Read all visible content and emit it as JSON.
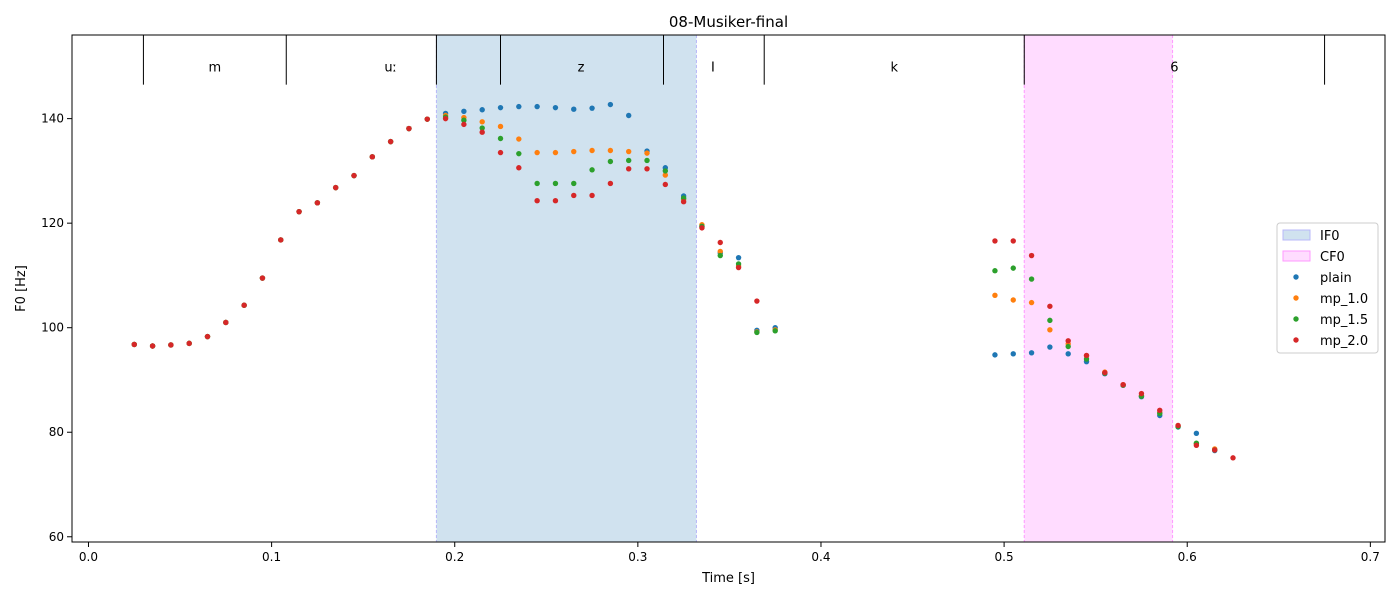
{
  "chart_data": {
    "type": "scatter",
    "title": "08-Musiker-final",
    "xlabel": "Time [s]",
    "ylabel": "F0 [Hz]",
    "xlim": [
      -0.009,
      0.708
    ],
    "ylim": [
      59,
      156
    ],
    "x_ticks": [
      0.0,
      0.1,
      0.2,
      0.3,
      0.4,
      0.5,
      0.6,
      0.7
    ],
    "x_tick_labels": [
      "0.0",
      "0.1",
      "0.2",
      "0.3",
      "0.4",
      "0.5",
      "0.6",
      "0.7"
    ],
    "y_ticks": [
      60,
      80,
      100,
      120,
      140
    ],
    "y_tick_labels": [
      "60",
      "80",
      "100",
      "120",
      "140"
    ],
    "grid": false,
    "legend_placement": "center-right",
    "segments": {
      "boundaries": [
        0.03,
        0.108,
        0.19,
        0.225,
        0.314,
        0.369,
        0.511,
        0.675
      ],
      "labels": [
        {
          "text": "m",
          "x": 0.069
        },
        {
          "text": "uː",
          "x": 0.165
        },
        {
          "text": "z",
          "x": 0.269
        },
        {
          "text": "I",
          "x": 0.341
        },
        {
          "text": "k",
          "x": 0.44
        },
        {
          "text": "6",
          "x": 0.593
        }
      ],
      "label_y": 150,
      "tick_bottom": 146.5
    },
    "spans": [
      {
        "name": "IF0",
        "x0": 0.19,
        "x1": 0.332,
        "color": "#aecde3",
        "edge": "#b8b8f8"
      },
      {
        "name": "CF0",
        "x0": 0.511,
        "x1": 0.592,
        "color": "#ffc2ff",
        "edge": "#ff99ff"
      }
    ],
    "series": [
      {
        "name": "plain",
        "color": "#1f77b4",
        "x": [
          0.025,
          0.035,
          0.045,
          0.055,
          0.065,
          0.075,
          0.085,
          0.095,
          0.105,
          0.115,
          0.125,
          0.135,
          0.145,
          0.155,
          0.165,
          0.175,
          0.185,
          0.195,
          0.205,
          0.215,
          0.225,
          0.235,
          0.245,
          0.255,
          0.265,
          0.275,
          0.285,
          0.295,
          0.305,
          0.315,
          0.325,
          0.335,
          0.345,
          0.355,
          0.365,
          0.375,
          0.495,
          0.505,
          0.515,
          0.525,
          0.535,
          0.545,
          0.555,
          0.565,
          0.575,
          0.585,
          0.595,
          0.605,
          0.615
        ],
        "y": [
          96.8,
          96.5,
          96.7,
          97.0,
          98.3,
          101.0,
          104.3,
          109.5,
          116.8,
          122.2,
          123.9,
          126.8,
          129.1,
          132.7,
          135.6,
          138.1,
          139.9,
          141.0,
          141.4,
          141.7,
          142.1,
          142.3,
          142.3,
          142.1,
          141.8,
          142.0,
          142.7,
          140.6,
          133.8,
          130.6,
          125.2,
          119.3,
          114.3,
          113.4,
          99.5,
          100.0,
          94.8,
          95.0,
          95.2,
          96.3,
          95.0,
          93.5,
          91.2,
          89.0,
          86.8,
          83.2,
          81.0,
          79.8,
          76.5
        ]
      },
      {
        "name": "mp_1.0",
        "color": "#ff7f0e",
        "x": [
          0.025,
          0.035,
          0.045,
          0.055,
          0.065,
          0.075,
          0.085,
          0.095,
          0.105,
          0.115,
          0.125,
          0.135,
          0.145,
          0.155,
          0.165,
          0.175,
          0.185,
          0.195,
          0.205,
          0.215,
          0.225,
          0.235,
          0.245,
          0.255,
          0.265,
          0.275,
          0.285,
          0.295,
          0.305,
          0.315,
          0.325,
          0.335,
          0.345,
          0.355,
          0.365,
          0.375,
          0.495,
          0.505,
          0.515,
          0.525,
          0.535,
          0.545,
          0.555,
          0.565,
          0.575,
          0.585,
          0.595,
          0.605,
          0.615
        ],
        "y": [
          96.8,
          96.5,
          96.7,
          97.0,
          98.3,
          101.0,
          104.3,
          109.5,
          116.8,
          122.2,
          123.9,
          126.8,
          129.1,
          132.7,
          135.6,
          138.1,
          139.9,
          140.6,
          140.2,
          139.4,
          138.5,
          136.1,
          133.5,
          133.5,
          133.7,
          133.9,
          133.9,
          133.7,
          133.4,
          129.2,
          124.5,
          119.7,
          114.6,
          111.8,
          99.2,
          99.6,
          106.2,
          105.3,
          104.8,
          99.6,
          96.9,
          94.6,
          91.5,
          89.1,
          87.0,
          83.8,
          81.2,
          77.8,
          76.8
        ]
      },
      {
        "name": "mp_1.5",
        "color": "#2ca02c",
        "x": [
          0.025,
          0.035,
          0.045,
          0.055,
          0.065,
          0.075,
          0.085,
          0.095,
          0.105,
          0.115,
          0.125,
          0.135,
          0.145,
          0.155,
          0.165,
          0.175,
          0.185,
          0.195,
          0.205,
          0.215,
          0.225,
          0.235,
          0.245,
          0.255,
          0.265,
          0.275,
          0.285,
          0.295,
          0.305,
          0.315,
          0.325,
          0.335,
          0.345,
          0.355,
          0.365,
          0.375,
          0.495,
          0.505,
          0.515,
          0.525,
          0.535,
          0.545,
          0.555,
          0.565,
          0.575,
          0.585,
          0.595,
          0.605,
          0.615
        ],
        "y": [
          96.8,
          96.5,
          96.7,
          97.0,
          98.3,
          101.0,
          104.3,
          109.5,
          116.8,
          122.2,
          123.9,
          126.8,
          129.1,
          132.7,
          135.6,
          138.1,
          139.9,
          140.3,
          139.7,
          138.2,
          136.2,
          133.3,
          127.6,
          127.6,
          127.6,
          130.2,
          131.8,
          132.0,
          132.0,
          130.0,
          124.8,
          119.4,
          113.8,
          112.2,
          99.1,
          99.4,
          110.9,
          111.4,
          109.3,
          101.4,
          96.4,
          94.0,
          91.3,
          89.0,
          86.9,
          83.6,
          81.1,
          77.9,
          76.6
        ]
      },
      {
        "name": "mp_2.0",
        "color": "#d62728",
        "x": [
          0.025,
          0.035,
          0.045,
          0.055,
          0.065,
          0.075,
          0.085,
          0.095,
          0.105,
          0.115,
          0.125,
          0.135,
          0.145,
          0.155,
          0.165,
          0.175,
          0.185,
          0.195,
          0.205,
          0.215,
          0.225,
          0.235,
          0.245,
          0.255,
          0.265,
          0.275,
          0.285,
          0.295,
          0.305,
          0.315,
          0.325,
          0.335,
          0.345,
          0.355,
          0.365,
          0.495,
          0.505,
          0.515,
          0.525,
          0.535,
          0.545,
          0.555,
          0.565,
          0.575,
          0.585,
          0.595,
          0.605,
          0.615,
          0.625
        ],
        "y": [
          96.8,
          96.5,
          96.7,
          97.0,
          98.3,
          101.0,
          104.3,
          109.5,
          116.8,
          122.2,
          123.9,
          126.8,
          129.1,
          132.7,
          135.6,
          138.1,
          139.9,
          140.0,
          138.9,
          137.4,
          133.5,
          130.6,
          124.3,
          124.3,
          125.3,
          125.3,
          127.6,
          130.4,
          130.4,
          127.4,
          124.1,
          119.1,
          116.3,
          111.5,
          105.1,
          116.6,
          116.6,
          113.8,
          104.1,
          97.5,
          94.7,
          91.4,
          89.1,
          87.4,
          84.2,
          81.3,
          77.5,
          76.6,
          75.1
        ]
      }
    ]
  }
}
